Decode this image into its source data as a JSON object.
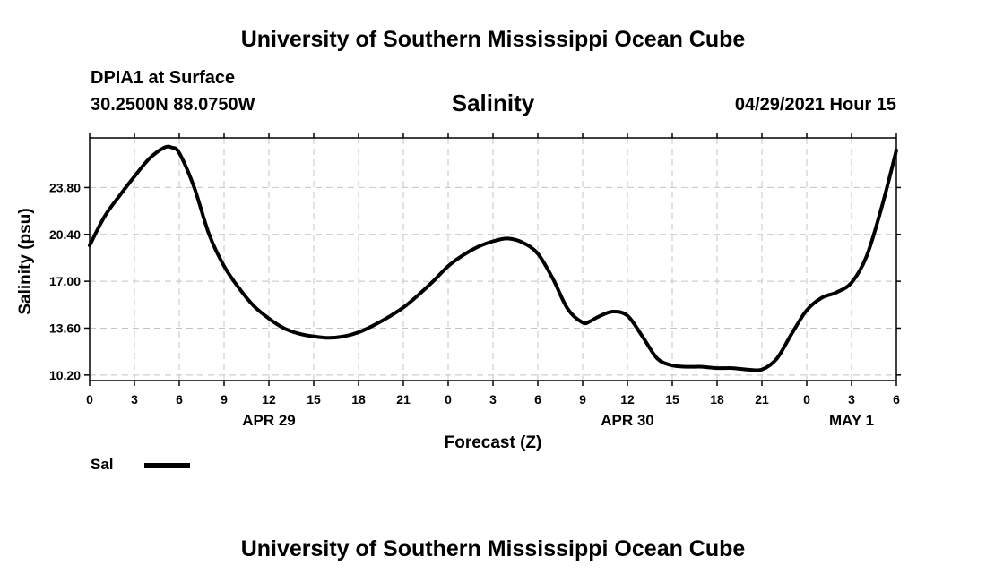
{
  "header": {
    "title": "University of Southern Mississippi Ocean Cube",
    "station": "DPIA1 at Surface",
    "coordinates": "30.2500N  88.0750W",
    "datetime": "04/29/2021 Hour 15"
  },
  "footer": {
    "title": "University of Southern Mississippi Ocean Cube"
  },
  "chart_data": {
    "type": "line",
    "title": "Salinity",
    "xlabel": "Forecast (Z)",
    "ylabel": "Salinity (psu)",
    "xlim": [
      0,
      54
    ],
    "ylim": [
      9.8,
      27.4
    ],
    "x_tick_values": [
      0,
      3,
      6,
      9,
      12,
      15,
      18,
      21,
      24,
      27,
      30,
      33,
      36,
      39,
      42,
      45,
      48,
      51,
      54
    ],
    "x_tick_labels": [
      "0",
      "3",
      "6",
      "9",
      "12",
      "15",
      "18",
      "21",
      "0",
      "3",
      "6",
      "9",
      "12",
      "15",
      "18",
      "21",
      "0",
      "3",
      "6"
    ],
    "y_tick_values": [
      10.2,
      13.6,
      17.0,
      20.4,
      23.8
    ],
    "y_tick_labels": [
      "10.20",
      "13.60",
      "17.00",
      "20.40",
      "23.80"
    ],
    "date_labels": [
      {
        "x": 12,
        "label": "APR 29"
      },
      {
        "x": 36,
        "label": "APR 30"
      },
      {
        "x": 51,
        "label": "MAY 1"
      }
    ],
    "grid": true,
    "legend_position": "bottom-left",
    "series": [
      {
        "name": "Sal",
        "color": "#000000",
        "x": [
          0,
          1,
          2,
          3,
          4,
          5,
          5.5,
          6,
          7,
          8,
          9,
          10,
          11,
          12,
          13,
          14,
          15,
          16,
          17,
          18,
          19,
          20,
          21,
          22,
          23,
          24,
          25,
          26,
          27,
          28,
          29,
          30,
          31,
          32,
          33,
          33.5,
          34,
          35,
          36,
          37,
          38,
          39,
          40,
          41,
          42,
          43,
          44,
          45,
          46,
          47,
          48,
          49,
          50,
          51,
          52,
          53,
          54
        ],
        "values": [
          19.6,
          21.7,
          23.2,
          24.6,
          25.9,
          26.7,
          26.7,
          26.3,
          23.8,
          20.4,
          18.1,
          16.5,
          15.2,
          14.3,
          13.6,
          13.2,
          13.0,
          12.9,
          13.0,
          13.3,
          13.8,
          14.4,
          15.1,
          16.0,
          17.0,
          18.1,
          18.9,
          19.5,
          19.9,
          20.1,
          19.8,
          19.0,
          17.2,
          15.0,
          14.0,
          14.1,
          14.4,
          14.8,
          14.5,
          13.0,
          11.4,
          10.9,
          10.8,
          10.8,
          10.7,
          10.7,
          10.6,
          10.6,
          11.4,
          13.2,
          14.9,
          15.8,
          16.2,
          16.9,
          18.8,
          22.3,
          26.5
        ]
      }
    ]
  }
}
